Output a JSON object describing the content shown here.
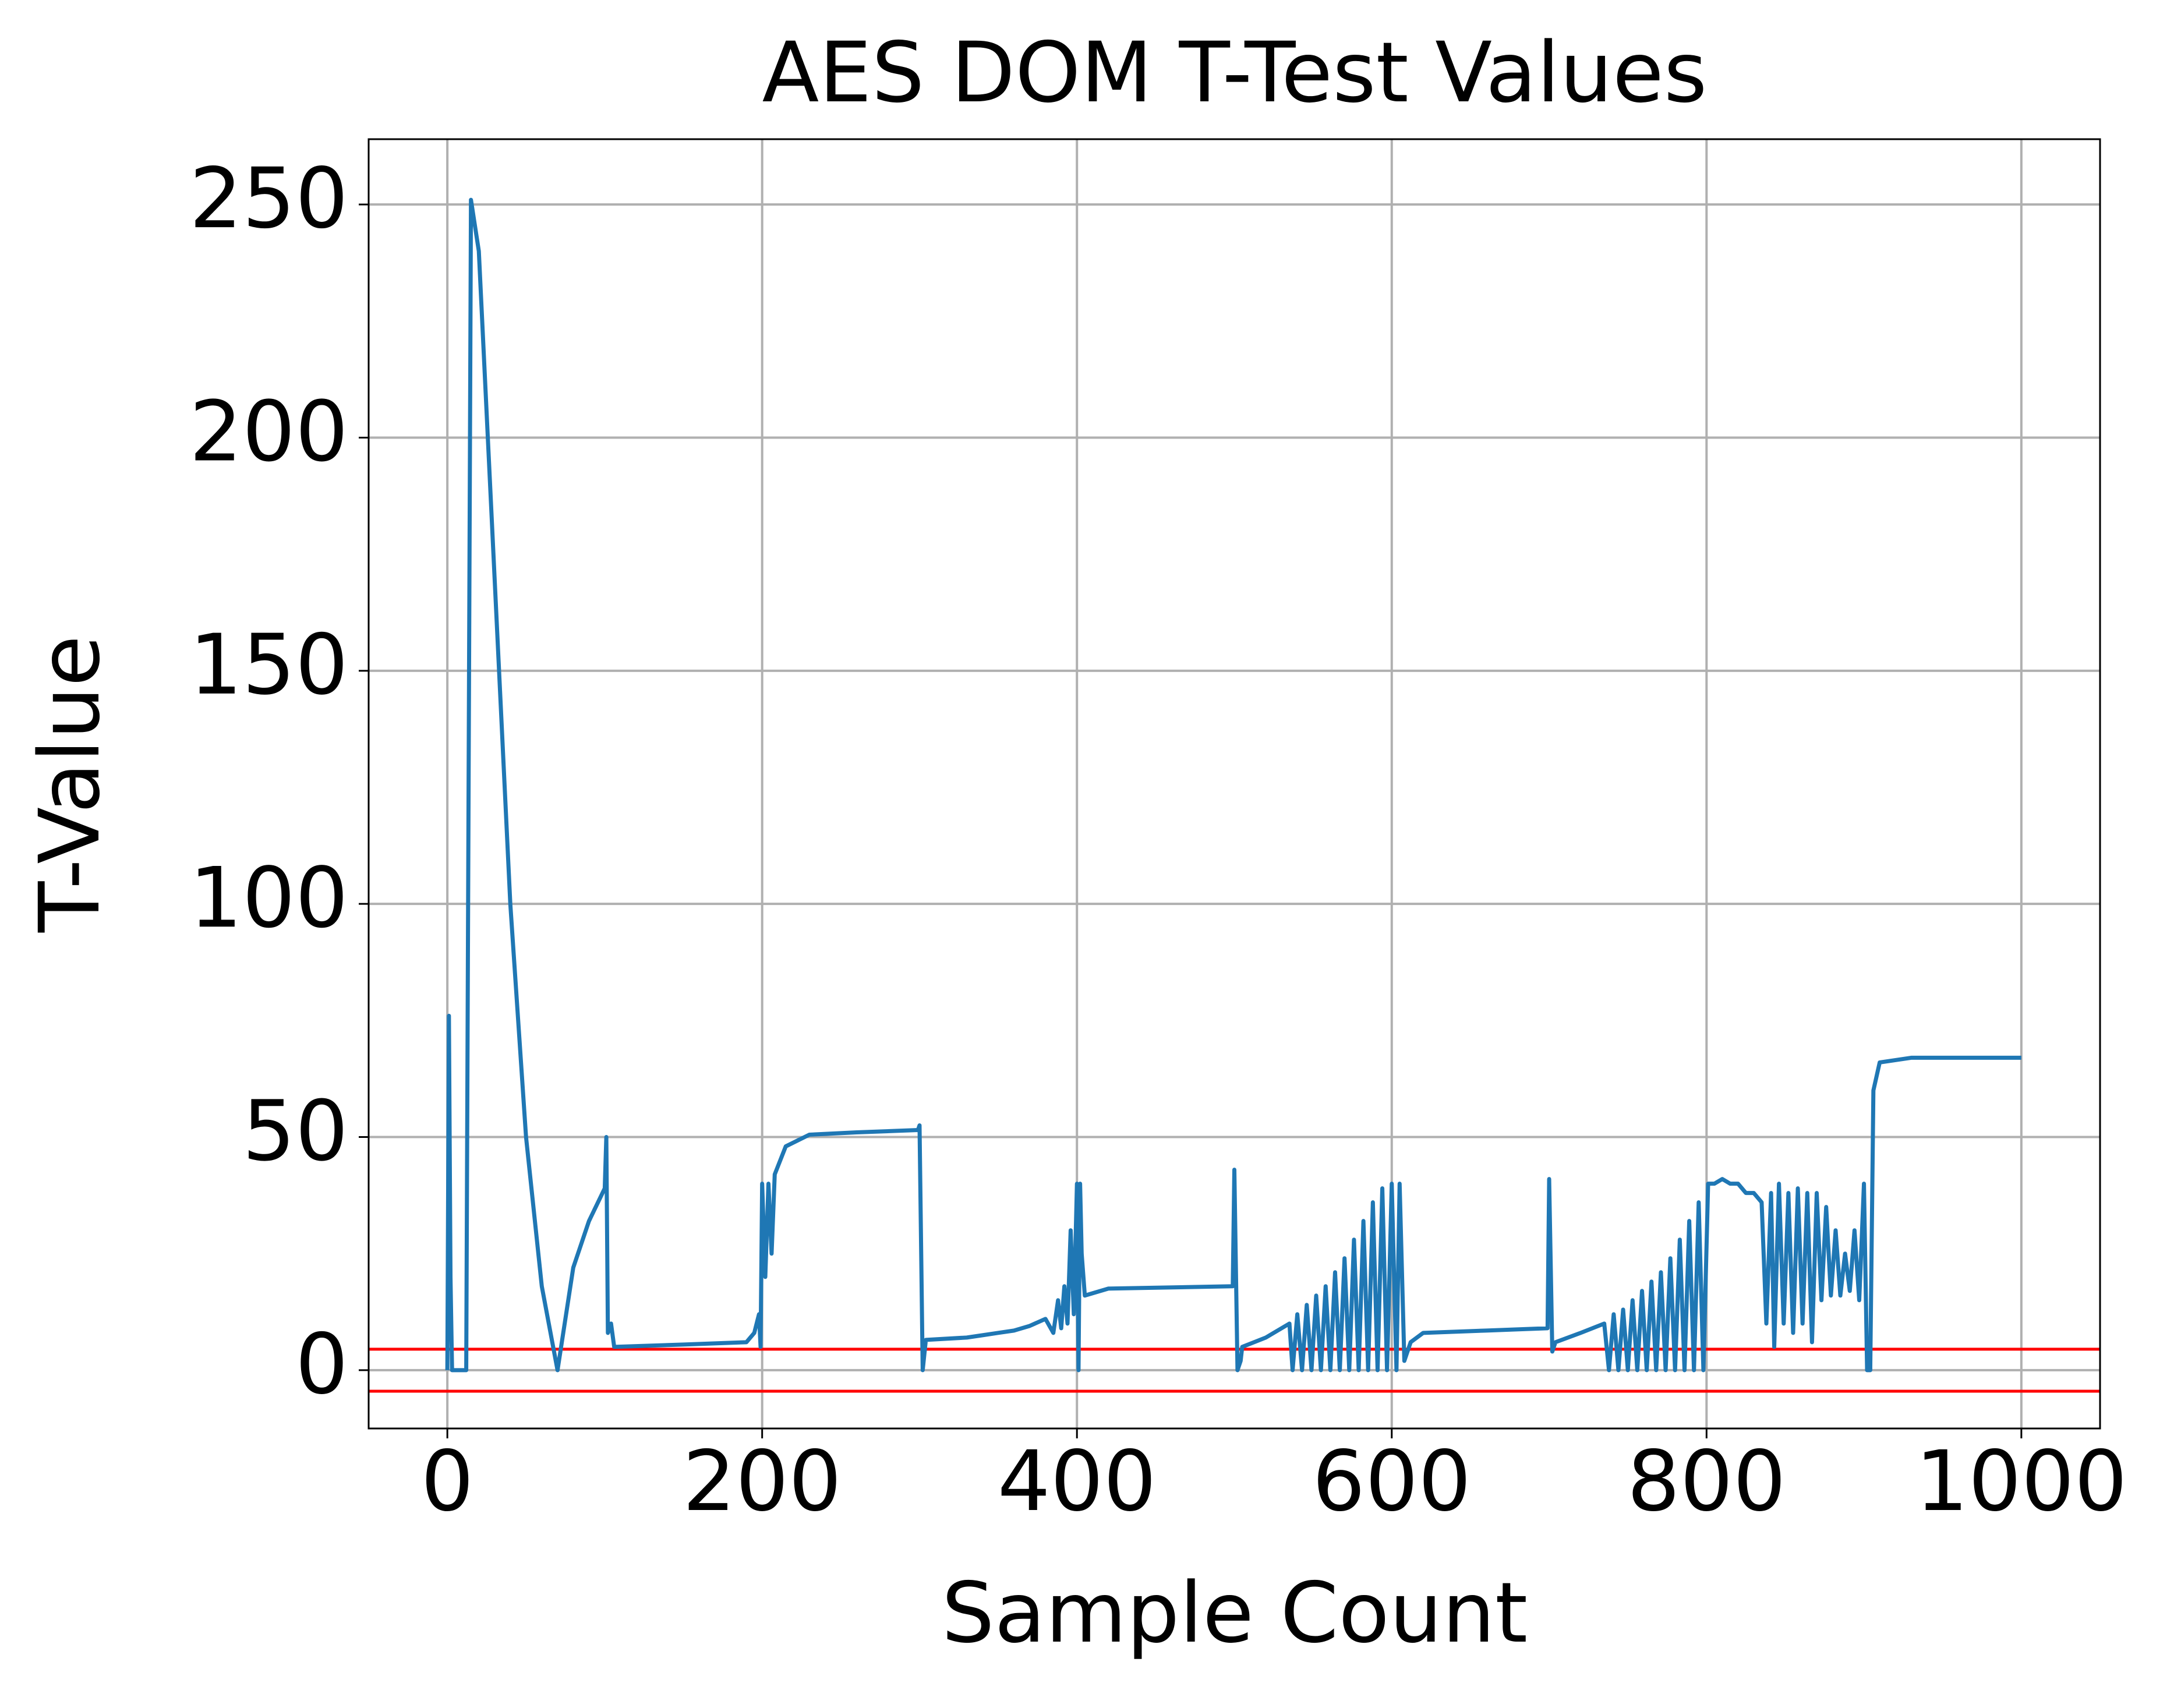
{
  "chart_data": {
    "type": "line",
    "title": "AES DOM T-Test Values",
    "x_label": "Sample Count",
    "y_label": "T-Value",
    "x": [
      0,
      1,
      2,
      3,
      12,
      15,
      20,
      30,
      40,
      50,
      60,
      70,
      80,
      90,
      100,
      101,
      102,
      104,
      106,
      150,
      190,
      195,
      198,
      199,
      200,
      202,
      204,
      206,
      208,
      215,
      230,
      260,
      299,
      300,
      302,
      304,
      330,
      340,
      350,
      360,
      370,
      380,
      385,
      388,
      390,
      392,
      394,
      396,
      398,
      400,
      401,
      402,
      403,
      405,
      420,
      499,
      500,
      502,
      504,
      505,
      520,
      535,
      537,
      540,
      543,
      546,
      549,
      552,
      555,
      558,
      561,
      564,
      567,
      570,
      573,
      576,
      579,
      582,
      585,
      588,
      591,
      594,
      597,
      600,
      603,
      605,
      608,
      612,
      620,
      660,
      699,
      700,
      702,
      704,
      720,
      735,
      738,
      741,
      744,
      747,
      750,
      753,
      756,
      759,
      762,
      765,
      768,
      771,
      774,
      777,
      780,
      783,
      786,
      789,
      792,
      795,
      798,
      801,
      805,
      810,
      815,
      820,
      825,
      830,
      835,
      838,
      841,
      843,
      846,
      849,
      852,
      855,
      858,
      861,
      864,
      867,
      870,
      873,
      876,
      879,
      882,
      885,
      888,
      891,
      894,
      897,
      900,
      902,
      904,
      906,
      910,
      930,
      1000
    ],
    "values": [
      0,
      76,
      20,
      0,
      0,
      251,
      240,
      170,
      100,
      50,
      18,
      0,
      22,
      32,
      39,
      50,
      8,
      10,
      5,
      5.5,
      6,
      8,
      12,
      5,
      40,
      20,
      40,
      25,
      42,
      48,
      50.5,
      51,
      51.5,
      52.5,
      0,
      6.5,
      7,
      7.5,
      8,
      8.5,
      9.5,
      11,
      8,
      15,
      9,
      18,
      10,
      30,
      12,
      40,
      0,
      40,
      25,
      16,
      17.5,
      18,
      43,
      0,
      2,
      5,
      7,
      10,
      0,
      12,
      0,
      14,
      0,
      16,
      0,
      18,
      0,
      21,
      0,
      24,
      0,
      28,
      0,
      32,
      0,
      36,
      0,
      39,
      0,
      40,
      0,
      40,
      2,
      6,
      8,
      8.5,
      9,
      41,
      4,
      6,
      8,
      10,
      0,
      12,
      0,
      13,
      0,
      15,
      0,
      17,
      0,
      19,
      0,
      21,
      0,
      24,
      0,
      28,
      0,
      32,
      0,
      36,
      0,
      40,
      40,
      41,
      40,
      40,
      38,
      38,
      36,
      10,
      38,
      5,
      40,
      10,
      38,
      8,
      39,
      10,
      38,
      6,
      38,
      15,
      35,
      16,
      30,
      16,
      25,
      17,
      30,
      15,
      40,
      0,
      0,
      60,
      66,
      67,
      67
    ],
    "color": "#1f77b4",
    "hlines": [
      {
        "value": 4.5,
        "color": "#ff0000"
      },
      {
        "value": -4.5,
        "color": "#ff0000"
      }
    ],
    "xlim": [
      -50,
      1050
    ],
    "ylim": [
      -12.5,
      264
    ],
    "xticks": [
      0,
      200,
      400,
      600,
      800,
      1000
    ],
    "yticks": [
      0,
      50,
      100,
      150,
      200,
      250
    ],
    "grid": true
  }
}
